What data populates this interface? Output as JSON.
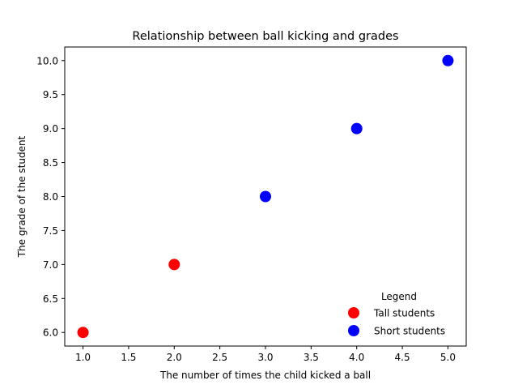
{
  "chart_data": {
    "type": "scatter",
    "title": "Relationship between ball kicking and grades",
    "xlabel": "The number of times the child kicked a ball",
    "ylabel": "The grade of the student",
    "xlim": [
      0.8,
      5.2
    ],
    "ylim": [
      5.8,
      10.2
    ],
    "x_ticks": [
      1.0,
      1.5,
      2.0,
      2.5,
      3.0,
      3.5,
      4.0,
      4.5,
      5.0
    ],
    "x_tick_labels": [
      "1.0",
      "1.5",
      "2.0",
      "2.5",
      "3.0",
      "3.5",
      "4.0",
      "4.5",
      "5.0"
    ],
    "y_ticks": [
      6.0,
      6.5,
      7.0,
      7.5,
      8.0,
      8.5,
      9.0,
      9.5,
      10.0
    ],
    "y_tick_labels": [
      "6.0",
      "6.5",
      "7.0",
      "7.5",
      "8.0",
      "8.5",
      "9.0",
      "9.5",
      "10.0"
    ],
    "grid": false,
    "legend": {
      "title": "Legend",
      "placement": "lower-right"
    },
    "series": [
      {
        "name": "Tall students",
        "color": "#ff0000",
        "points": [
          {
            "x": 1,
            "y": 6
          },
          {
            "x": 2,
            "y": 7
          }
        ]
      },
      {
        "name": "Short students",
        "color": "#0000ff",
        "points": [
          {
            "x": 3,
            "y": 8
          },
          {
            "x": 4,
            "y": 9
          },
          {
            "x": 5,
            "y": 10
          }
        ]
      }
    ]
  }
}
